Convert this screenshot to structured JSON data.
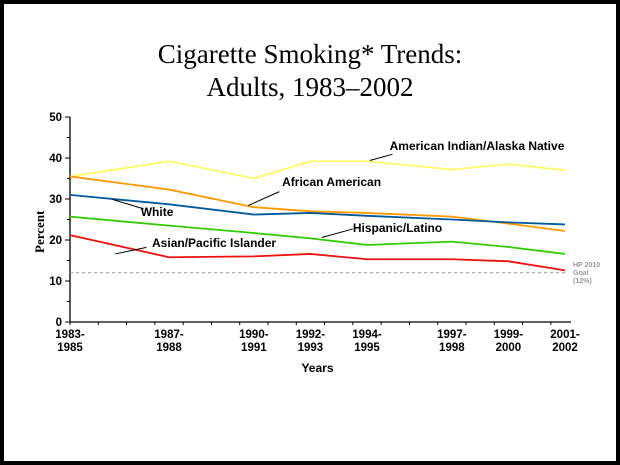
{
  "chart_data": {
    "type": "line",
    "title": [
      "Cigarette Smoking* Trends:",
      "Adults, 1983–2002"
    ],
    "xlabel": "Years",
    "ylabel": "Percent",
    "ylim": [
      0,
      50
    ],
    "yticks": [
      0,
      10,
      20,
      30,
      40,
      50
    ],
    "categories": [
      "1983-\n1985",
      "1987-\n1988",
      "1990-\n1991",
      "1992-\n1993",
      "1994-\n1995",
      "1997-\n1998",
      "1999-\n2000",
      "2001-\n2002"
    ],
    "x": [
      1984,
      1987.5,
      1990.5,
      1992.5,
      1994.5,
      1997.5,
      1999.5,
      2001.5
    ],
    "xlim": [
      1984,
      2001.5
    ],
    "series": [
      {
        "name": "American Indian/Alaska Native",
        "color": "#ffff66",
        "values": [
          35.5,
          39.2,
          35.0,
          39.2,
          39.2,
          37.2,
          38.5,
          37.0
        ]
      },
      {
        "name": "African American",
        "color": "#ff9900",
        "values": [
          35.5,
          32.3,
          28.0,
          27.0,
          26.6,
          25.7,
          24.0,
          22.2
        ]
      },
      {
        "name": "White",
        "color": "#005a9c",
        "values": [
          31.0,
          28.7,
          26.2,
          26.6,
          25.9,
          25.0,
          24.3,
          23.8
        ]
      },
      {
        "name": "Hispanic/Latino",
        "color": "#33cc00",
        "values": [
          25.7,
          23.5,
          21.7,
          20.4,
          18.8,
          19.6,
          18.3,
          16.6
        ]
      },
      {
        "name": "Asian/Pacific Islander",
        "color": "#ee1111",
        "values": [
          21.2,
          15.8,
          16.0,
          16.6,
          15.3,
          15.3,
          14.8,
          12.6
        ]
      }
    ],
    "goal": {
      "value": 12,
      "label": [
        "HP 2010",
        "Goal",
        "(12%)"
      ],
      "color": "#999999"
    }
  }
}
